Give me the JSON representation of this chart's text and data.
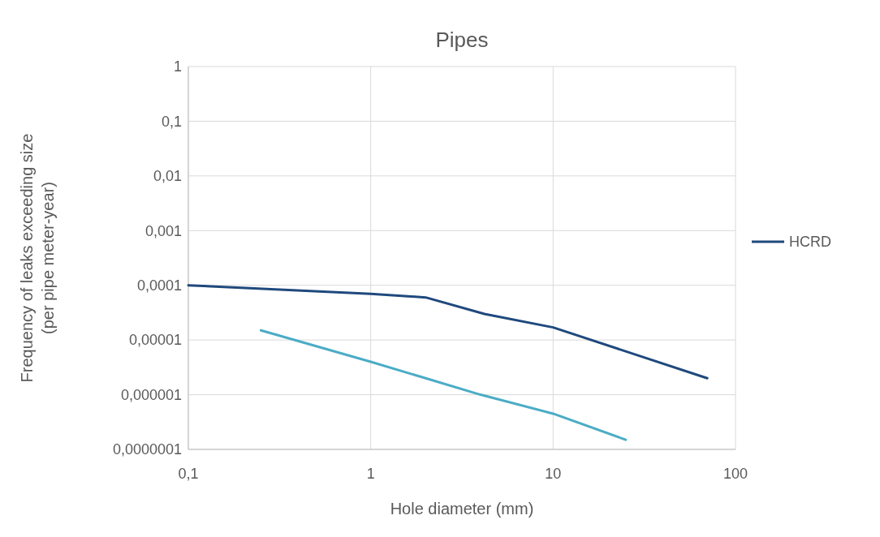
{
  "chart_data": {
    "type": "line",
    "title": "Pipes",
    "xlabel": "Hole diameter (mm)",
    "ylabel": "Frequency of leaks exceeding size (per pipe meter-year)",
    "log": "xy",
    "grid": true,
    "legend": "right",
    "line_style": "solid",
    "xlim": [
      0.1,
      100
    ],
    "xticks": [
      {
        "value": 0.1,
        "label": "0,1"
      },
      1,
      10,
      100
    ],
    "ylim": [
      1e-07,
      1
    ],
    "yticks": [
      {
        "value": 1e-07,
        "label": "0,0000001"
      },
      {
        "value": 1e-06,
        "label": "0,000001"
      },
      {
        "value": 1e-05,
        "label": "0,00001"
      },
      {
        "value": 0.0001,
        "label": "0,0001"
      },
      {
        "value": 0.001,
        "label": "0,001"
      },
      {
        "value": 0.01,
        "label": "0,01"
      },
      {
        "value": 0.1,
        "label": "0,1"
      },
      1
    ],
    "series": [
      {
        "color": "#4bacc6",
        "x": [
          0.25,
          1,
          2,
          4,
          10,
          25
        ],
        "values": [
          1.5e-05,
          4e-06,
          2e-06,
          1e-06,
          4.5e-07,
          1.5e-07
        ]
      },
      {
        "name": "HCRD",
        "color": "#1f497d",
        "x": [
          0.1,
          1,
          2,
          4.2,
          10,
          70
        ],
        "values": [
          0.0001,
          7e-05,
          6e-05,
          3e-05,
          1.7e-05,
          2e-06
        ]
      }
    ]
  }
}
